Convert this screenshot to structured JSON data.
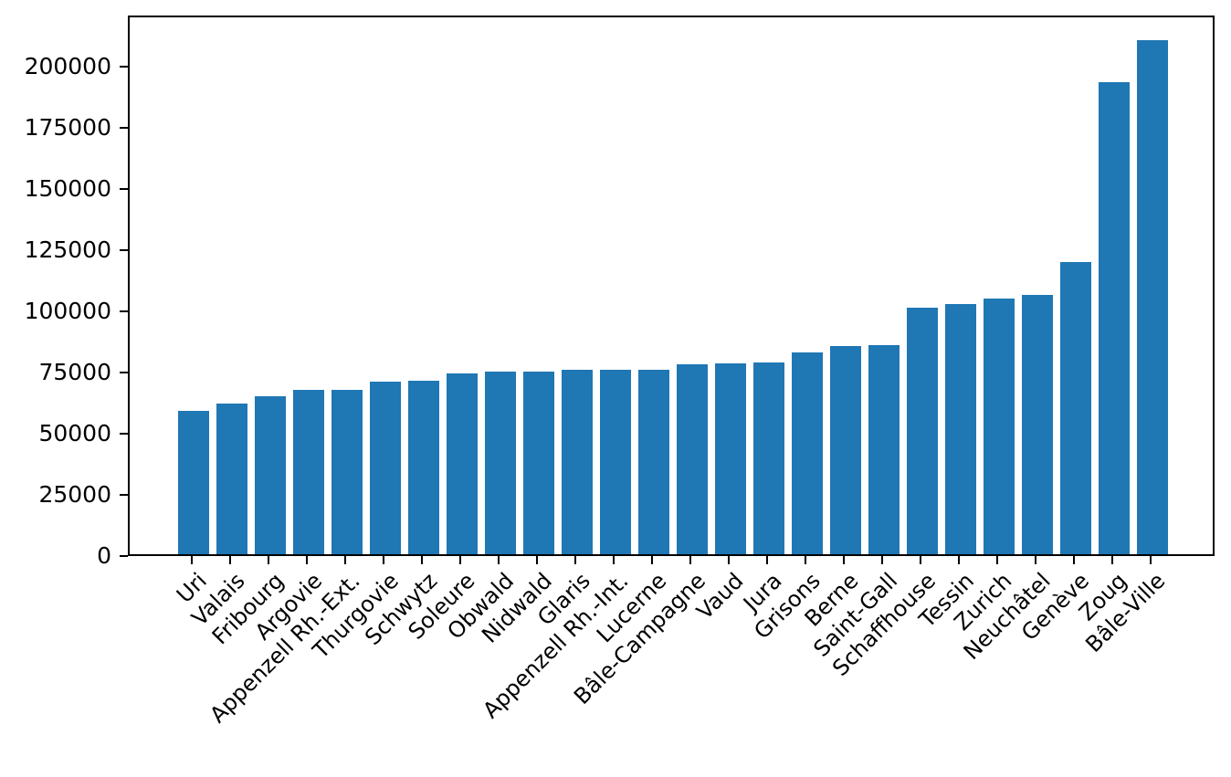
{
  "chart_data": {
    "type": "bar",
    "title": "",
    "xlabel": "",
    "ylabel": "",
    "grid": false,
    "legend": false,
    "x_tick_rotation_deg": 45,
    "bar_color": "#1f77b4",
    "axis_color": "#000000",
    "background_color": "#ffffff",
    "categories": [
      "Uri",
      "Valais",
      "Fribourg",
      "Argovie",
      "Appenzell Rh.-Ext.",
      "Thurgovie",
      "Schwytz",
      "Soleure",
      "Obwald",
      "Nidwald",
      "Glaris",
      "Appenzell Rh.-Int.",
      "Lucerne",
      "Bâle-Campagne",
      "Vaud",
      "Jura",
      "Grisons",
      "Berne",
      "Saint-Gall",
      "Schaffhouse",
      "Tessin",
      "Zurich",
      "Neuchâtel",
      "Genève",
      "Zoug",
      "Bâle-Ville"
    ],
    "values": [
      58600,
      61400,
      64400,
      67200,
      67300,
      70400,
      70800,
      73700,
      74600,
      74800,
      75400,
      75500,
      75500,
      77600,
      78100,
      78500,
      82500,
      85100,
      85400,
      100800,
      102300,
      104500,
      106000,
      119500,
      193000,
      210000
    ],
    "yticks": [
      0,
      25000,
      50000,
      75000,
      100000,
      125000,
      150000,
      175000,
      200000
    ],
    "ylim": [
      0,
      220860
    ]
  }
}
